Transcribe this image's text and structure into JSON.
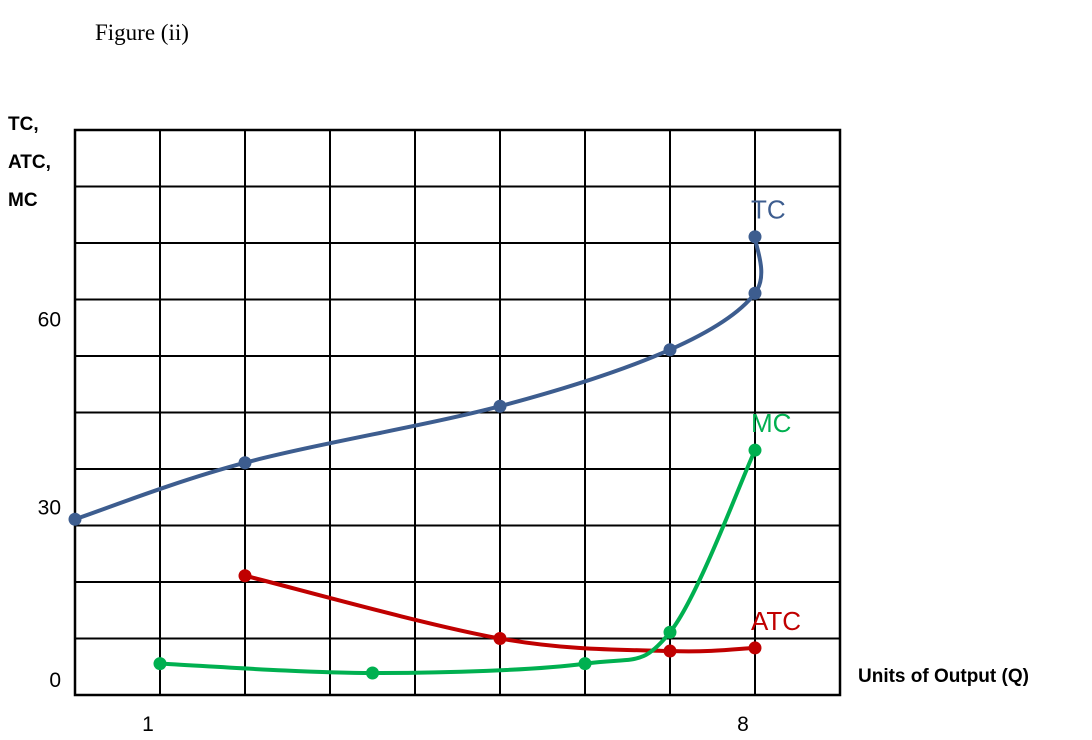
{
  "figure_title": "Figure (ii)",
  "chart_data": {
    "type": "line",
    "ylabel_lines": [
      "TC,",
      "ATC,",
      "MC"
    ],
    "xlabel": "Units of Output (Q)",
    "xlim": [
      0,
      9
    ],
    "ylim": [
      0,
      90
    ],
    "grid": true,
    "x_tick_labels": [
      {
        "value": 1,
        "label": "1"
      },
      {
        "value": 8,
        "label": "8"
      }
    ],
    "y_tick_labels": [
      {
        "value": 0,
        "label": "0"
      },
      {
        "value": 30,
        "label": "30"
      },
      {
        "value": 60,
        "label": "60"
      }
    ],
    "series": [
      {
        "name": "TC",
        "color": "#3d5d8f",
        "points": [
          [
            0,
            28
          ],
          [
            2,
            37
          ],
          [
            5,
            46
          ],
          [
            7,
            55
          ],
          [
            8,
            64
          ],
          [
            8,
            73
          ]
        ]
      },
      {
        "name": "ATC",
        "color": "#c00000",
        "points": [
          [
            2,
            19
          ],
          [
            5,
            9
          ],
          [
            7,
            7
          ],
          [
            8,
            7.5
          ]
        ]
      },
      {
        "name": "MC",
        "color": "#00b050",
        "points": [
          [
            1,
            5
          ],
          [
            3.5,
            3.5
          ],
          [
            6,
            5
          ],
          [
            7,
            10
          ],
          [
            8,
            39
          ]
        ]
      }
    ]
  }
}
